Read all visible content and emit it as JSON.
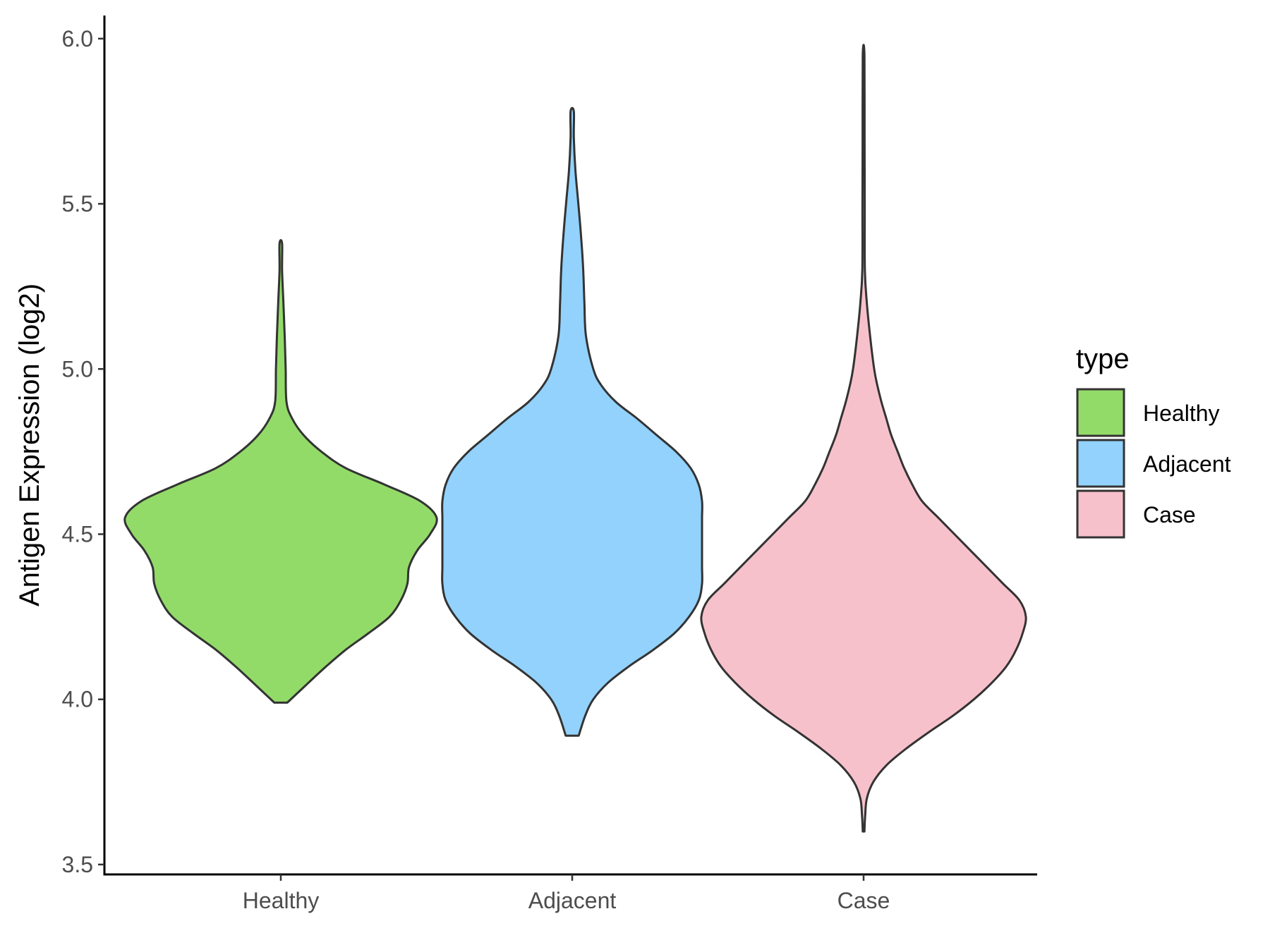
{
  "chart_data": {
    "type": "violin",
    "title": "",
    "xlabel": "",
    "ylabel": "Antigen Expression (log2)",
    "ylim": [
      3.47,
      6.07
    ],
    "yticks": [
      3.5,
      4.0,
      4.5,
      5.0,
      5.5,
      6.0
    ],
    "ytick_labels": [
      "3.5",
      "4.0",
      "4.5",
      "5.0",
      "5.5",
      "6.0"
    ],
    "categories": [
      "Healthy",
      "Adjacent",
      "Case"
    ],
    "grid": false,
    "legend": {
      "title": "type",
      "position": "right",
      "entries": [
        "Healthy",
        "Adjacent",
        "Case"
      ]
    },
    "colors": {
      "Healthy": "#93DB69",
      "Adjacent": "#92D2FD",
      "Case": "#F7C1CB",
      "outline": "#333333"
    },
    "series": [
      {
        "name": "Healthy",
        "min": 3.99,
        "max": 5.38,
        "profile": [
          [
            3.99,
            0.04
          ],
          [
            4.05,
            0.17
          ],
          [
            4.1,
            0.28
          ],
          [
            4.15,
            0.4
          ],
          [
            4.2,
            0.54
          ],
          [
            4.25,
            0.67
          ],
          [
            4.3,
            0.74
          ],
          [
            4.35,
            0.78
          ],
          [
            4.4,
            0.79
          ],
          [
            4.45,
            0.84
          ],
          [
            4.5,
            0.92
          ],
          [
            4.55,
            0.96
          ],
          [
            4.6,
            0.86
          ],
          [
            4.65,
            0.64
          ],
          [
            4.7,
            0.4
          ],
          [
            4.75,
            0.25
          ],
          [
            4.8,
            0.14
          ],
          [
            4.85,
            0.07
          ],
          [
            4.9,
            0.035
          ],
          [
            5.0,
            0.03
          ],
          [
            5.1,
            0.024
          ],
          [
            5.2,
            0.016
          ],
          [
            5.3,
            0.008
          ],
          [
            5.38,
            0.008
          ]
        ]
      },
      {
        "name": "Adjacent",
        "min": 3.89,
        "max": 5.78,
        "profile": [
          [
            3.89,
            0.04
          ],
          [
            3.95,
            0.08
          ],
          [
            4.0,
            0.13
          ],
          [
            4.05,
            0.22
          ],
          [
            4.1,
            0.35
          ],
          [
            4.15,
            0.5
          ],
          [
            4.2,
            0.63
          ],
          [
            4.25,
            0.72
          ],
          [
            4.3,
            0.78
          ],
          [
            4.35,
            0.8
          ],
          [
            4.4,
            0.8
          ],
          [
            4.45,
            0.8
          ],
          [
            4.5,
            0.8
          ],
          [
            4.55,
            0.8
          ],
          [
            4.6,
            0.8
          ],
          [
            4.65,
            0.78
          ],
          [
            4.7,
            0.73
          ],
          [
            4.75,
            0.64
          ],
          [
            4.8,
            0.52
          ],
          [
            4.85,
            0.4
          ],
          [
            4.9,
            0.27
          ],
          [
            4.95,
            0.18
          ],
          [
            5.0,
            0.13
          ],
          [
            5.1,
            0.085
          ],
          [
            5.2,
            0.075
          ],
          [
            5.3,
            0.068
          ],
          [
            5.4,
            0.055
          ],
          [
            5.5,
            0.038
          ],
          [
            5.6,
            0.02
          ],
          [
            5.7,
            0.01
          ],
          [
            5.78,
            0.01
          ]
        ]
      },
      {
        "name": "Case",
        "min": 3.6,
        "max": 5.95,
        "profile": [
          [
            3.6,
            0.005
          ],
          [
            3.65,
            0.01
          ],
          [
            3.7,
            0.02
          ],
          [
            3.75,
            0.06
          ],
          [
            3.8,
            0.14
          ],
          [
            3.85,
            0.26
          ],
          [
            3.9,
            0.4
          ],
          [
            3.95,
            0.55
          ],
          [
            4.0,
            0.68
          ],
          [
            4.05,
            0.79
          ],
          [
            4.1,
            0.88
          ],
          [
            4.15,
            0.94
          ],
          [
            4.2,
            0.98
          ],
          [
            4.25,
            1.0
          ],
          [
            4.3,
            0.96
          ],
          [
            4.35,
            0.86
          ],
          [
            4.4,
            0.76
          ],
          [
            4.45,
            0.66
          ],
          [
            4.5,
            0.56
          ],
          [
            4.55,
            0.46
          ],
          [
            4.6,
            0.36
          ],
          [
            4.65,
            0.3
          ],
          [
            4.7,
            0.25
          ],
          [
            4.75,
            0.21
          ],
          [
            4.8,
            0.17
          ],
          [
            4.85,
            0.14
          ],
          [
            4.9,
            0.11
          ],
          [
            4.95,
            0.085
          ],
          [
            5.0,
            0.065
          ],
          [
            5.1,
            0.04
          ],
          [
            5.2,
            0.02
          ],
          [
            5.3,
            0.008
          ],
          [
            5.5,
            0.007
          ],
          [
            5.7,
            0.006
          ],
          [
            5.95,
            0.005
          ]
        ]
      }
    ]
  }
}
